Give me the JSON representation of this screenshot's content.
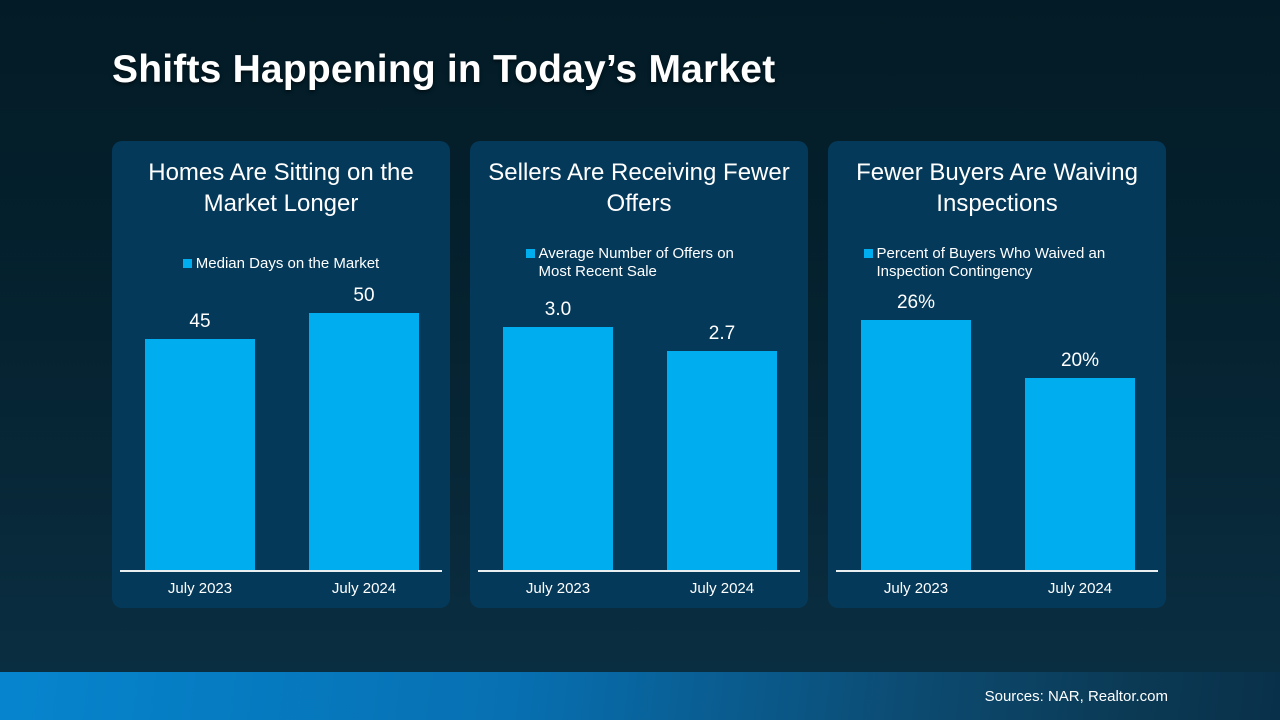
{
  "slide": {
    "title": "Shifts Happening in Today’s Market",
    "source": "Sources: NAR, Realtor.com"
  },
  "colors": {
    "bar": "#00AEEF",
    "card_bg": "#05395A",
    "page_top": "#031B26",
    "page_bottom": "#0A2E41",
    "band_left": "#0685CE",
    "band_right": "#09304A",
    "axis_line": "#E9EEF1",
    "text": "#FFFFFF"
  },
  "chart_data": [
    {
      "type": "bar",
      "title": "Homes Are Sitting on the Market Longer",
      "legend": "Median Days on the Market",
      "categories": [
        "July 2023",
        "July 2024"
      ],
      "values": [
        45,
        50
      ],
      "value_labels": [
        "45",
        "50"
      ],
      "ylim": [
        0,
        50
      ],
      "grid": false,
      "legend_position": "top-center"
    },
    {
      "type": "bar",
      "title": "Sellers Are Receiving Fewer Offers",
      "legend": "Average Number of Offers on Most Recent Sale",
      "categories": [
        "July 2023",
        "July 2024"
      ],
      "values": [
        3.0,
        2.7
      ],
      "value_labels": [
        "3.0",
        "2.7"
      ],
      "ylim": [
        0,
        3.0
      ],
      "grid": false,
      "legend_position": "top-center"
    },
    {
      "type": "bar",
      "title": "Fewer Buyers Are Waiving Inspections",
      "legend": "Percent of Buyers Who Waived an Inspection Contingency",
      "categories": [
        "July 2023",
        "July 2024"
      ],
      "values": [
        26,
        20
      ],
      "value_labels": [
        "26%",
        "20%"
      ],
      "ylim": [
        0,
        26
      ],
      "grid": false,
      "legend_position": "top-center"
    }
  ]
}
